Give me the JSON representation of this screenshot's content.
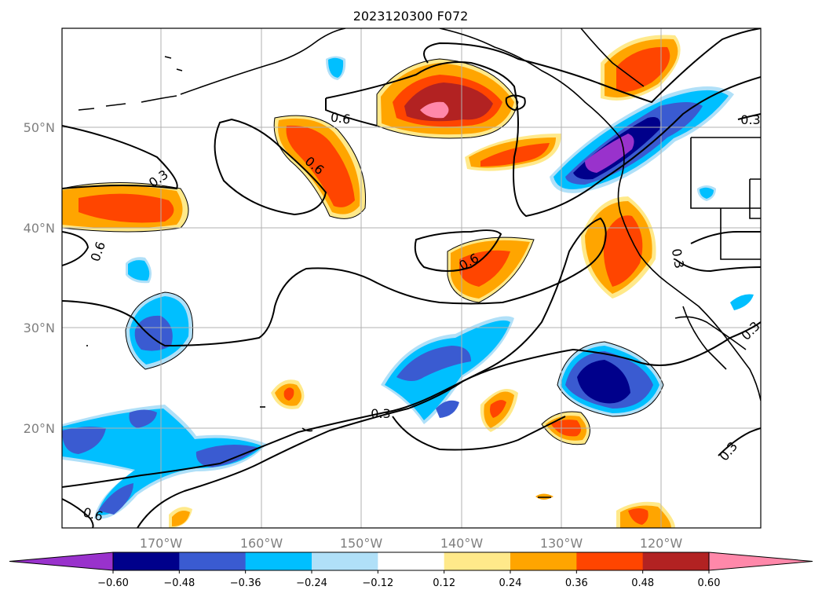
{
  "title": "2023120300 F072",
  "map": {
    "lon_labels": [
      "170°W",
      "160°W",
      "150°W",
      "140°W",
      "130°W",
      "120°W"
    ],
    "lat_labels": [
      "50°N",
      "40°N",
      "30°N",
      "20°N"
    ],
    "contour_labels": [
      "0.6",
      "0.6",
      "0.3",
      "0.6",
      "0.6",
      "0.3",
      "0.3",
      "0.3",
      "0.6",
      "0.3",
      "0.3"
    ],
    "grid": true
  },
  "colorbar": {
    "ticks": [
      "−0.60",
      "−0.48",
      "−0.36",
      "−0.24",
      "−0.12",
      "0.12",
      "0.24",
      "0.36",
      "0.48",
      "0.60"
    ],
    "colors": [
      "#9932cc",
      "#00008b",
      "#3a5bd1",
      "#00bfff",
      "#b0e0f8",
      "#ffffff",
      "#ffe98a",
      "#ffa500",
      "#ff4500",
      "#b22222",
      "#ff88aa"
    ]
  }
}
